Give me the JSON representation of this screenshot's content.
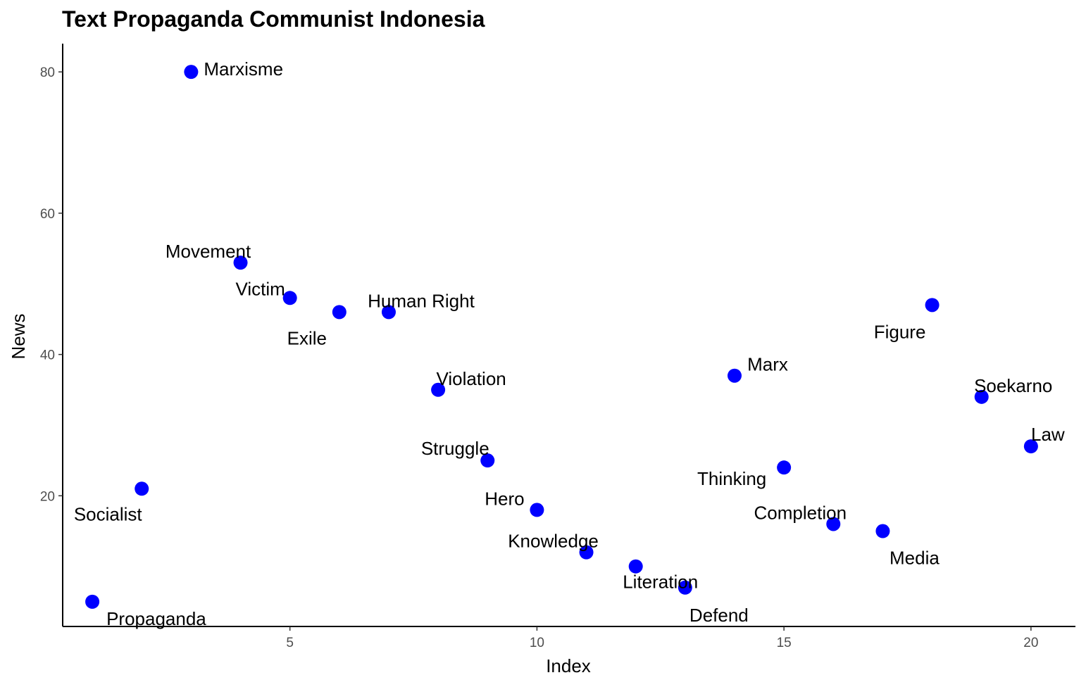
{
  "chart_data": {
    "type": "scatter",
    "title": "Text Propaganda Communist Indonesia",
    "xlabel": "Index",
    "ylabel": "News",
    "xlim": [
      0.4,
      20.9
    ],
    "ylim": [
      1.5,
      84
    ],
    "xticks": [
      5,
      10,
      15,
      20
    ],
    "yticks": [
      20,
      40,
      60,
      80
    ],
    "grid": false,
    "point_color": "#0000FF",
    "points": [
      {
        "x": 1,
        "y": 5,
        "label": "Propaganda"
      },
      {
        "x": 2,
        "y": 21,
        "label": "Socialist"
      },
      {
        "x": 3,
        "y": 80,
        "label": "Marxisme"
      },
      {
        "x": 4,
        "y": 53,
        "label": "Movement"
      },
      {
        "x": 5,
        "y": 48,
        "label": "Victim"
      },
      {
        "x": 6,
        "y": 46,
        "label": "Exile"
      },
      {
        "x": 7,
        "y": 46,
        "label": "Human Right"
      },
      {
        "x": 8,
        "y": 35,
        "label": "Violation"
      },
      {
        "x": 9,
        "y": 25,
        "label": "Struggle"
      },
      {
        "x": 10,
        "y": 18,
        "label": "Hero"
      },
      {
        "x": 11,
        "y": 12,
        "label": "Knowledge"
      },
      {
        "x": 12,
        "y": 10,
        "label": "Literation"
      },
      {
        "x": 13,
        "y": 7,
        "label": "Defend"
      },
      {
        "x": 14,
        "y": 37,
        "label": "Marx"
      },
      {
        "x": 15,
        "y": 24,
        "label": "Thinking"
      },
      {
        "x": 16,
        "y": 16,
        "label": "Completion"
      },
      {
        "x": 17,
        "y": 15,
        "label": "Media"
      },
      {
        "x": 18,
        "y": 47,
        "label": "Figure"
      },
      {
        "x": 19,
        "y": 34,
        "label": "Soekarno"
      },
      {
        "x": 20,
        "y": 27,
        "label": "Law"
      }
    ]
  }
}
